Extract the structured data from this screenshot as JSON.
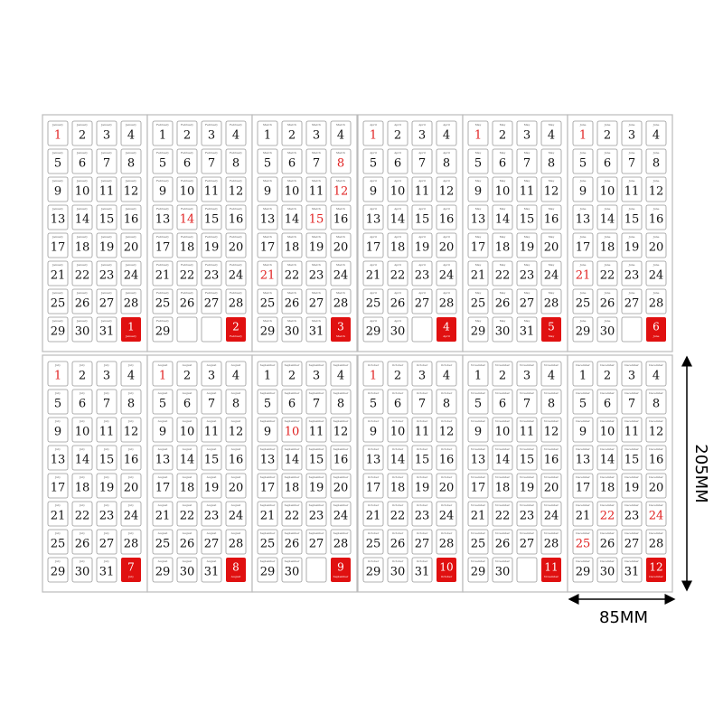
{
  "panels": [
    {
      "month": "January",
      "number": 1,
      "red": [
        1
      ],
      "days": [
        1,
        2,
        3,
        4,
        5,
        6,
        7,
        8,
        9,
        10,
        11,
        12,
        13,
        14,
        15,
        16,
        17,
        18,
        19,
        20,
        21,
        22,
        23,
        24,
        25,
        26,
        27,
        28,
        29,
        30,
        31
      ]
    },
    {
      "month": "February",
      "number": 2,
      "red": [
        14
      ],
      "days": [
        1,
        2,
        3,
        4,
        5,
        6,
        7,
        8,
        9,
        10,
        11,
        12,
        13,
        14,
        15,
        16,
        17,
        18,
        19,
        20,
        21,
        22,
        23,
        24,
        25,
        26,
        27,
        28,
        29
      ]
    },
    {
      "month": "March",
      "number": 3,
      "red": [
        8,
        12,
        15,
        21
      ],
      "days": [
        1,
        2,
        3,
        4,
        5,
        6,
        7,
        8,
        9,
        10,
        11,
        12,
        13,
        14,
        15,
        16,
        17,
        18,
        19,
        20,
        21,
        22,
        23,
        24,
        25,
        26,
        27,
        28,
        29,
        30,
        31
      ]
    },
    {
      "month": "April",
      "number": 4,
      "red": [
        1
      ],
      "days": [
        1,
        2,
        3,
        4,
        5,
        6,
        7,
        8,
        9,
        10,
        11,
        12,
        13,
        14,
        15,
        16,
        17,
        18,
        19,
        20,
        21,
        22,
        23,
        24,
        25,
        26,
        27,
        28,
        29,
        30
      ]
    },
    {
      "month": "May",
      "number": 5,
      "red": [
        1
      ],
      "days": [
        1,
        2,
        3,
        4,
        5,
        6,
        7,
        8,
        9,
        10,
        11,
        12,
        13,
        14,
        15,
        16,
        17,
        18,
        19,
        20,
        21,
        22,
        23,
        24,
        25,
        26,
        27,
        28,
        29,
        30,
        31
      ]
    },
    {
      "month": "June",
      "number": 6,
      "red": [
        1,
        21
      ],
      "days": [
        1,
        2,
        3,
        4,
        5,
        6,
        7,
        8,
        9,
        10,
        11,
        12,
        13,
        14,
        15,
        16,
        17,
        18,
        19,
        20,
        21,
        22,
        23,
        24,
        25,
        26,
        27,
        28,
        29,
        30
      ]
    },
    {
      "month": "July",
      "number": 7,
      "red": [
        1
      ],
      "days": [
        1,
        2,
        3,
        4,
        5,
        6,
        7,
        8,
        9,
        10,
        11,
        12,
        13,
        14,
        15,
        16,
        17,
        18,
        19,
        20,
        21,
        22,
        23,
        24,
        25,
        26,
        27,
        28,
        29,
        30,
        31
      ]
    },
    {
      "month": "August",
      "number": 8,
      "red": [
        1
      ],
      "days": [
        1,
        2,
        3,
        4,
        5,
        6,
        7,
        8,
        9,
        10,
        11,
        12,
        13,
        14,
        15,
        16,
        17,
        18,
        19,
        20,
        21,
        22,
        23,
        24,
        25,
        26,
        27,
        28,
        29,
        30,
        31
      ]
    },
    {
      "month": "September",
      "number": 9,
      "red": [
        10
      ],
      "days": [
        1,
        2,
        3,
        4,
        5,
        6,
        7,
        8,
        9,
        10,
        11,
        12,
        13,
        14,
        15,
        16,
        17,
        18,
        19,
        20,
        21,
        22,
        23,
        24,
        25,
        26,
        27,
        28,
        29,
        30
      ]
    },
    {
      "month": "October",
      "number": 10,
      "red": [
        1
      ],
      "days": [
        1,
        2,
        3,
        4,
        5,
        6,
        7,
        8,
        9,
        10,
        11,
        12,
        13,
        14,
        15,
        16,
        17,
        18,
        19,
        20,
        21,
        22,
        23,
        24,
        25,
        26,
        27,
        28,
        29,
        30,
        31
      ]
    },
    {
      "month": "November",
      "number": 11,
      "red": [],
      "days": [
        1,
        2,
        3,
        4,
        5,
        6,
        7,
        8,
        9,
        10,
        11,
        12,
        13,
        14,
        15,
        16,
        17,
        18,
        19,
        20,
        21,
        22,
        23,
        24,
        25,
        26,
        27,
        28,
        29,
        30
      ]
    },
    {
      "month": "December",
      "number": 12,
      "red": [
        22,
        24,
        25
      ],
      "days": [
        1,
        2,
        3,
        4,
        5,
        6,
        7,
        8,
        9,
        10,
        11,
        12,
        13,
        14,
        15,
        16,
        17,
        18,
        19,
        20,
        21,
        22,
        23,
        24,
        25,
        26,
        27,
        28,
        29,
        30,
        31
      ]
    }
  ],
  "height_label": "205MM",
  "width_label": "85MM"
}
